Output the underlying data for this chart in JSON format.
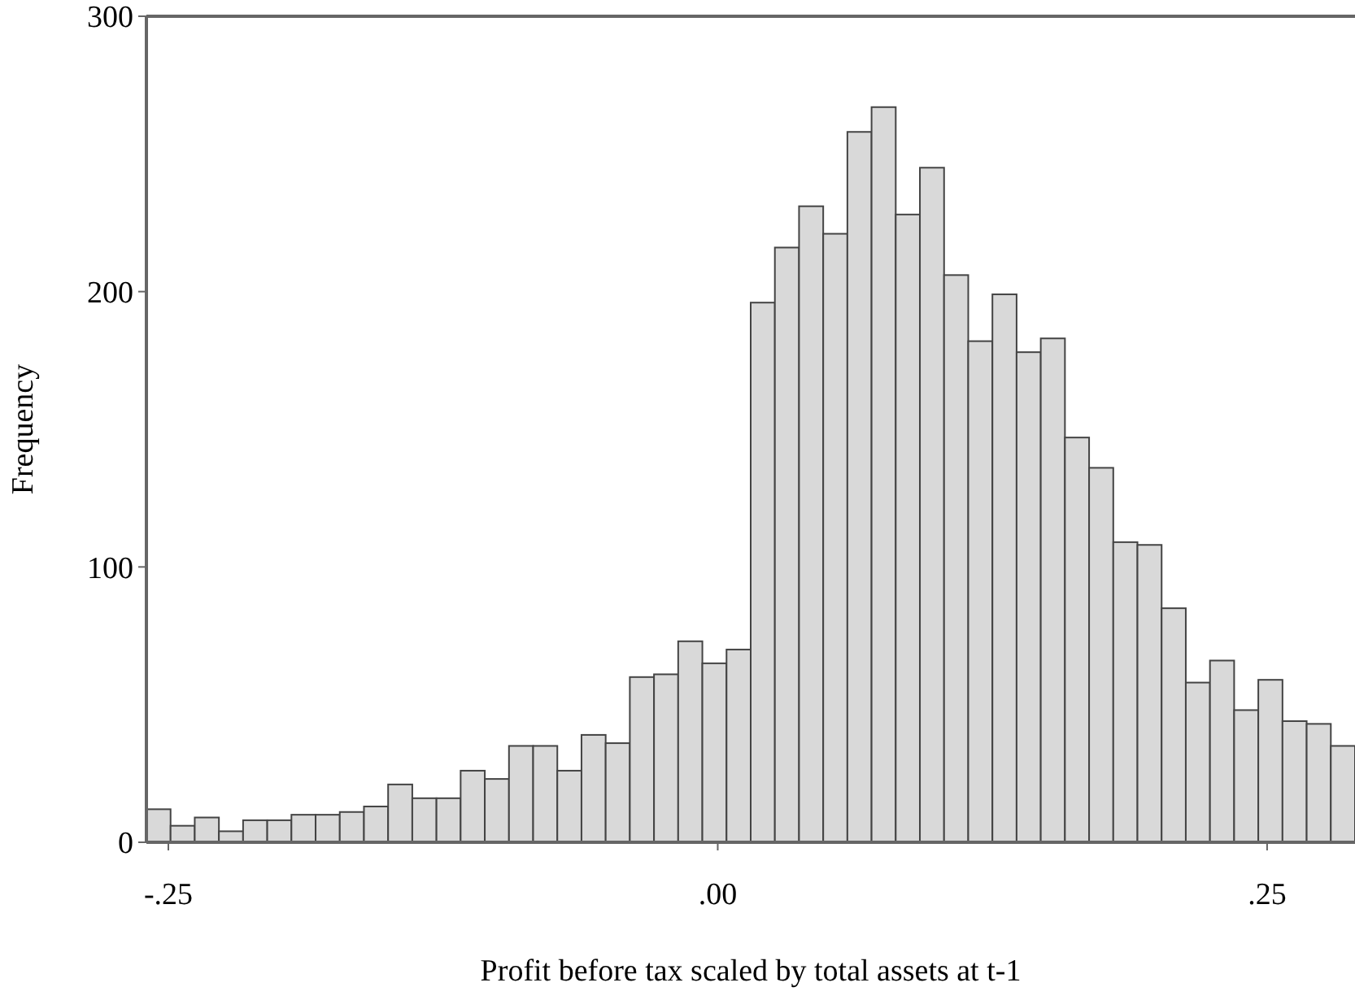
{
  "chart_data": {
    "type": "histogram",
    "xlabel": "Profit before tax scaled by total assets at t-1",
    "ylabel": "Frequency",
    "bins": [
      -0.26,
      -0.249,
      -0.238,
      -0.227,
      -0.216,
      -0.205,
      -0.194,
      -0.183,
      -0.172,
      -0.161,
      -0.15,
      -0.139,
      -0.128,
      -0.117,
      -0.106,
      -0.095,
      -0.084,
      -0.073,
      -0.062,
      -0.051,
      -0.04,
      -0.029,
      -0.018,
      -0.007,
      0.004,
      0.015,
      0.026,
      0.037,
      0.048,
      0.059,
      0.07,
      0.081,
      0.092,
      0.103,
      0.114,
      0.125,
      0.136,
      0.147,
      0.158,
      0.169,
      0.18,
      0.191,
      0.202,
      0.213,
      0.224,
      0.235,
      0.246,
      0.257,
      0.268,
      0.279,
      0.29
    ],
    "values": [
      12,
      6,
      9,
      4,
      8,
      8,
      10,
      10,
      11,
      13,
      21,
      16,
      16,
      26,
      23,
      35,
      35,
      26,
      39,
      36,
      60,
      61,
      73,
      65,
      70,
      196,
      216,
      231,
      221,
      258,
      267,
      228,
      245,
      206,
      182,
      199,
      178,
      183,
      147,
      136,
      109,
      108,
      85,
      58,
      66,
      48,
      59,
      44,
      43,
      35
    ],
    "color": "#d9d9d9",
    "xlim": [
      -0.26,
      0.29
    ],
    "xticks": [
      {
        "value": -0.25,
        "label": "-.25"
      },
      {
        "value": 0,
        "label": ".00"
      },
      {
        "value": 0.25,
        "label": ".25"
      }
    ],
    "ylim": [
      0,
      300
    ],
    "yticks": [
      0,
      100,
      200,
      300
    ]
  }
}
